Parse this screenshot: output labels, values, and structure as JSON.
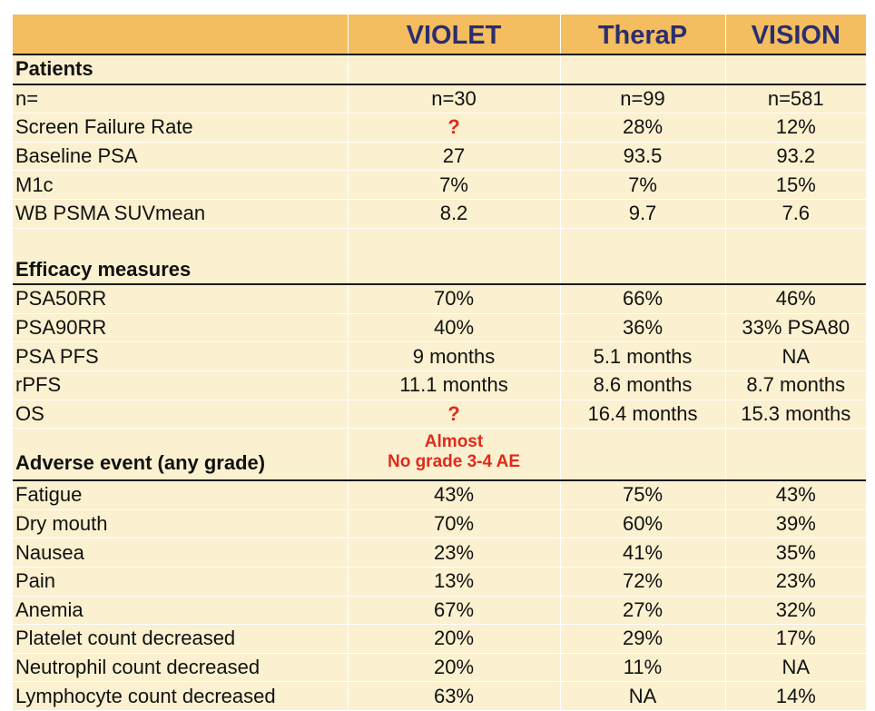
{
  "columns": [
    "",
    "VIOLET",
    "TheraP",
    "VISION"
  ],
  "sections": {
    "patients": {
      "title": "Patients",
      "rows": [
        {
          "label": "n=",
          "violet": "n=30",
          "therap": "n=99",
          "vision": "n=581"
        },
        {
          "label": "Screen Failure Rate",
          "violet": "?",
          "therap": "28%",
          "vision": "12%"
        },
        {
          "label": "Baseline PSA",
          "violet": "27",
          "therap": "93.5",
          "vision": "93.2"
        },
        {
          "label": "M1c",
          "violet": "7%",
          "therap": "7%",
          "vision": "15%"
        },
        {
          "label": "WB PSMA SUVmean",
          "violet": "8.2",
          "therap": "9.7",
          "vision": "7.6"
        }
      ]
    },
    "efficacy": {
      "title": "Efficacy measures",
      "rows": [
        {
          "label": "PSA50RR",
          "violet": "70%",
          "therap": "66%",
          "vision": "46%"
        },
        {
          "label": "PSA90RR",
          "violet": "40%",
          "therap": "36%",
          "vision": "33% PSA80"
        },
        {
          "label": "PSA PFS",
          "violet": "9 months",
          "therap": "5.1 months",
          "vision": "NA"
        },
        {
          "label": "rPFS",
          "violet": "11.1 months",
          "therap": "8.6 months",
          "vision": "8.7 months"
        },
        {
          "label": "OS",
          "violet": "?",
          "therap": "16.4 months",
          "vision": "15.3 months"
        }
      ]
    },
    "adverse": {
      "title": "Adverse event (any grade)",
      "note_line1": "Almost",
      "note_line2": "No grade 3-4  AE",
      "rows": [
        {
          "label": "Fatigue",
          "violet": "43%",
          "therap": "75%",
          "vision": "43%"
        },
        {
          "label": "Dry mouth",
          "violet": "70%",
          "therap": "60%",
          "vision": "39%"
        },
        {
          "label": "Nausea",
          "violet": "23%",
          "therap": "41%",
          "vision": "35%"
        },
        {
          "label": "Pain",
          "violet": "13%",
          "therap": "72%",
          "vision": "23%"
        },
        {
          "label": "Anemia",
          "violet": "67%",
          "therap": "27%",
          "vision": "32%"
        },
        {
          "label": "Platelet count decreased",
          "violet": "20%",
          "therap": "29%",
          "vision": "17%"
        },
        {
          "label": "Neutrophil count decreased",
          "violet": "20%",
          "therap": "11%",
          "vision": "NA"
        },
        {
          "label": "Lymphocyte count decreased",
          "violet": "63%",
          "therap": "NA",
          "vision": "14%"
        }
      ]
    }
  },
  "colors": {
    "header_bg": "#f3bd60",
    "body_bg": "#fbf0cf",
    "header_text": "#2b2e6e",
    "highlight": "#e02a1b"
  }
}
